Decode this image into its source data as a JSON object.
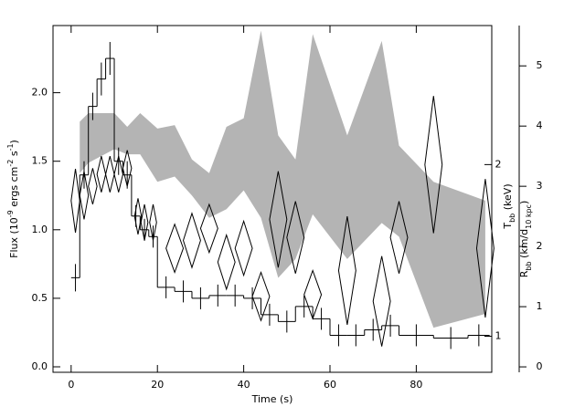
{
  "chart_data": {
    "type": "step-diamond",
    "xlabel": "Time (s)",
    "ylabel": [
      {
        "text": "Flux (10"
      },
      {
        "text": "-9",
        "sup": true
      },
      {
        "text": " ergs cm"
      },
      {
        "text": "-2",
        "sup": true
      },
      {
        "text": " s"
      },
      {
        "text": "-1",
        "sup": true
      },
      {
        "text": ")"
      }
    ],
    "y2label": [
      {
        "text": "T"
      },
      {
        "text": "bb",
        "sub": true
      },
      {
        "text": " (keV)"
      }
    ],
    "y3label": [
      {
        "text": "R"
      },
      {
        "text": "bb",
        "sub": true
      },
      {
        "text": " (km/d"
      },
      {
        "text": "10 kpc",
        "sub": true
      },
      {
        "text": ")"
      }
    ],
    "xlim": [
      -4.2,
      97.5
    ],
    "xticks": [
      0,
      20,
      40,
      60,
      80
    ],
    "ylim": [
      -0.04,
      2.49
    ],
    "yticks": [
      {
        "value": 0,
        "label": "0.0"
      },
      {
        "value": 0.5,
        "label": "0.5"
      },
      {
        "value": 1,
        "label": "1.0"
      },
      {
        "value": 1.5,
        "label": "1.5"
      },
      {
        "value": 2,
        "label": "2.0"
      }
    ],
    "y2lim": [
      -0.09,
      5.67
    ],
    "y2ticks": [
      0,
      1,
      2,
      3,
      4,
      5
    ],
    "y3lim": [
      0.79,
      2.81
    ],
    "y3ticks": [
      1,
      2
    ],
    "flux": {
      "bins": [
        0,
        2,
        4,
        6,
        8,
        10,
        12,
        14,
        16,
        18,
        20,
        24,
        28,
        32,
        36,
        40,
        44,
        48,
        52,
        56,
        60,
        64,
        68,
        72,
        76,
        84,
        92,
        97
      ],
      "values": [
        0.65,
        1.4,
        1.9,
        2.1,
        2.25,
        1.5,
        1.4,
        1.1,
        1.0,
        0.95,
        0.58,
        0.55,
        0.5,
        0.52,
        0.52,
        0.5,
        0.38,
        0.33,
        0.44,
        0.35,
        0.23,
        0.23,
        0.27,
        0.3,
        0.23,
        0.21,
        0.23
      ],
      "errors": [
        0.1,
        0.1,
        0.1,
        0.12,
        0.12,
        0.1,
        0.1,
        0.08,
        0.08,
        0.08,
        0.08,
        0.08,
        0.08,
        0.08,
        0.08,
        0.08,
        0.08,
        0.08,
        0.08,
        0.08,
        0.08,
        0.08,
        0.08,
        0.08,
        0.08,
        0.08,
        0.08
      ],
      "color": "#000000"
    },
    "kt": {
      "t": [
        1,
        3,
        5,
        7,
        9,
        11,
        13,
        15.5,
        17,
        19,
        24,
        28,
        32,
        36,
        40,
        44,
        48,
        52,
        56,
        64,
        72,
        76,
        84,
        96
      ],
      "terr": [
        1,
        1,
        1,
        1,
        1,
        1,
        1,
        0.8,
        0.8,
        0.8,
        2,
        2,
        2,
        2,
        2,
        2,
        2,
        2,
        2,
        2,
        2,
        2,
        2,
        2
      ],
      "values": [
        2.76,
        2.85,
        3.0,
        3.2,
        3.2,
        3.2,
        3.3,
        2.5,
        2.4,
        2.4,
        1.97,
        2.1,
        2.3,
        1.74,
        1.97,
        1.17,
        2.45,
        2.15,
        1.2,
        1.6,
        1.09,
        2.15,
        3.36,
        1.97
      ],
      "errors": [
        0.53,
        0.4,
        0.3,
        0.3,
        0.3,
        0.3,
        0.3,
        0.3,
        0.3,
        0.3,
        0.4,
        0.45,
        0.4,
        0.45,
        0.45,
        0.4,
        0.8,
        0.6,
        0.4,
        0.9,
        0.75,
        0.6,
        1.14,
        1.15
      ],
      "color": "#000000"
    },
    "band": {
      "x": [
        2,
        4,
        10,
        13,
        16,
        20,
        24,
        28,
        32,
        36,
        40,
        44,
        48,
        52,
        56,
        64,
        72,
        76,
        84,
        96
      ],
      "lower": [
        1.95,
        2.01,
        2.09,
        2.06,
        2.06,
        1.9,
        1.93,
        1.82,
        1.69,
        1.74,
        1.85,
        1.69,
        1.34,
        1.45,
        1.71,
        1.45,
        1.66,
        1.58,
        1.05,
        1.13
      ],
      "upper": [
        2.25,
        2.3,
        2.3,
        2.22,
        2.3,
        2.21,
        2.23,
        2.03,
        1.95,
        2.22,
        2.27,
        2.78,
        2.17,
        2.03,
        2.76,
        2.17,
        2.72,
        2.11,
        1.9,
        1.79
      ],
      "color": "#b4b4b4"
    }
  }
}
